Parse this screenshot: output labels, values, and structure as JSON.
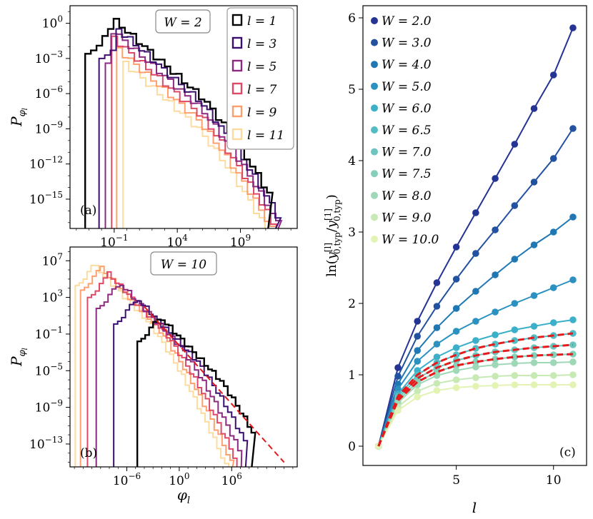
{
  "chart_data": [
    {
      "panel": "a",
      "type": "histogram",
      "panel_label": "(a)",
      "annotation": "W = 2",
      "xlabel": "",
      "ylabel": "P_{φ_l}",
      "xscale": "log",
      "yscale": "log",
      "xlim_log10": [
        -4.5,
        13.5
      ],
      "ylim_log10": [
        -17.5,
        1.5
      ],
      "xticks": [
        {
          "exp": -1,
          "label": "10^{-1}"
        },
        {
          "exp": 4,
          "label": "10^{4}"
        },
        {
          "exp": 9,
          "label": "10^{9}"
        }
      ],
      "yticks": [
        {
          "exp": 0,
          "label": "10^{0}"
        },
        {
          "exp": -3,
          "label": "10^{-3}"
        },
        {
          "exp": -6,
          "label": "10^{-6}"
        },
        {
          "exp": -9,
          "label": "10^{-9}"
        },
        {
          "exp": -12,
          "label": "10^{-12}"
        },
        {
          "exp": -15,
          "label": "10^{-15}"
        }
      ],
      "legend_position": "top-right",
      "series": [
        {
          "name": "l = 1",
          "color": "#000000",
          "xmin_log10": -3.3,
          "xmax_log10": 11.2,
          "peak_x": -1.1,
          "peak_y": 0.2,
          "slope": -1.0
        },
        {
          "name": "l = 3",
          "color": "#3b0f70",
          "xmin_log10": -2.2,
          "xmax_log10": 11.8,
          "peak_x": -1.2,
          "peak_y": -0.2,
          "slope": -1.0
        },
        {
          "name": "l = 5",
          "color": "#8c2981",
          "xmin_log10": -1.7,
          "xmax_log10": 12.0,
          "peak_x": -1.3,
          "peak_y": -0.6,
          "slope": -1.0
        },
        {
          "name": "l = 7",
          "color": "#de4968",
          "xmin_log10": -1.2,
          "xmax_log10": 12.3,
          "peak_x": -1.4,
          "peak_y": -1.1,
          "slope": -1.0
        },
        {
          "name": "l = 9",
          "color": "#fe9f6d",
          "xmin_log10": -0.8,
          "xmax_log10": 12.5,
          "peak_x": -1.5,
          "peak_y": -1.6,
          "slope": -1.0
        },
        {
          "name": "l = 11",
          "color": "#fcdba0",
          "xmin_log10": -0.3,
          "xmax_log10": 12.8,
          "peak_x": -1.6,
          "peak_y": -2.2,
          "slope": -1.0
        }
      ]
    },
    {
      "panel": "b",
      "type": "histogram",
      "panel_label": "(b)",
      "annotation": "W = 10",
      "xlabel": "φ_l",
      "ylabel": "P_{φ_l}",
      "xscale": "log",
      "yscale": "log",
      "xlim_log10": [
        -12.5,
        13.5
      ],
      "ylim_log10": [
        -15.5,
        8.5
      ],
      "xticks": [
        {
          "exp": -6,
          "label": "10^{-6}"
        },
        {
          "exp": 0,
          "label": "10^{0}"
        },
        {
          "exp": 6,
          "label": "10^{6}"
        }
      ],
      "yticks": [
        {
          "exp": 7,
          "label": "10^{7}"
        },
        {
          "exp": 3,
          "label": "10^{3}"
        },
        {
          "exp": -1,
          "label": "10^{-1}"
        },
        {
          "exp": -5,
          "label": "10^{-5}"
        },
        {
          "exp": -9,
          "label": "10^{-9}"
        },
        {
          "exp": -13,
          "label": "10^{-13}"
        }
      ],
      "fit_line": {
        "color": "#e41a1c",
        "x0_log10": -4.0,
        "y0_log10": 2.0,
        "x1_log10": 12.0,
        "y1_log10": -15.0
      },
      "series": [
        {
          "name": "l = 1",
          "color": "#000000",
          "xmin_log10": -4.8,
          "xmax_log10": 8.3,
          "peak_x": -2.5,
          "peak_y": 1.0,
          "slope": -1.05
        },
        {
          "name": "l = 3",
          "color": "#3b0f70",
          "xmin_log10": -7.5,
          "xmax_log10": 7.6,
          "peak_x": -5.0,
          "peak_y": 2.9,
          "slope": -1.05
        },
        {
          "name": "l = 5",
          "color": "#8c2981",
          "xmin_log10": -9.5,
          "xmax_log10": 7.1,
          "peak_x": -7.0,
          "peak_y": 4.6,
          "slope": -1.05
        },
        {
          "name": "l = 7",
          "color": "#de4968",
          "xmin_log10": -10.5,
          "xmax_log10": 6.6,
          "peak_x": -8.5,
          "peak_y": 5.8,
          "slope": -1.05
        },
        {
          "name": "l = 9",
          "color": "#fe9f6d",
          "xmin_log10": -11.3,
          "xmax_log10": 6.1,
          "peak_x": -9.5,
          "peak_y": 6.6,
          "slope": -1.05
        },
        {
          "name": "l = 11",
          "color": "#fcdba0",
          "xmin_log10": -11.9,
          "xmax_log10": 5.7,
          "peak_x": -10.5,
          "peak_y": 7.1,
          "slope": -1.05
        }
      ]
    },
    {
      "panel": "c",
      "type": "line",
      "panel_label": "(c)",
      "xlabel": "l",
      "ylabel": "ln(y_{0,typ}^{[l]} / y_{0,typ}^{[1]})",
      "xlim": [
        0.2,
        11.7
      ],
      "ylim": [
        -0.27,
        6.17
      ],
      "xticks": [
        5,
        10
      ],
      "yticks": [
        0,
        1,
        2,
        3,
        4,
        5,
        6
      ],
      "legend_position": "top-left",
      "x": [
        1,
        2,
        3,
        4,
        5,
        6,
        7,
        8,
        9,
        10,
        11
      ],
      "series": [
        {
          "name": "W = 2.0",
          "color": "#253494",
          "values": [
            0,
            1.1,
            1.75,
            2.29,
            2.79,
            3.27,
            3.75,
            4.23,
            4.73,
            5.2,
            5.86
          ]
        },
        {
          "name": "W = 3.0",
          "color": "#2251a0",
          "values": [
            0,
            0.98,
            1.54,
            1.96,
            2.34,
            2.7,
            3.03,
            3.37,
            3.7,
            4.03,
            4.45
          ]
        },
        {
          "name": "W = 4.0",
          "color": "#1f78b4",
          "values": [
            0,
            0.87,
            1.34,
            1.66,
            1.93,
            2.17,
            2.4,
            2.62,
            2.82,
            3.0,
            3.21
          ]
        },
        {
          "name": "W = 5.0",
          "color": "#2a91c0",
          "values": [
            0,
            0.8,
            1.19,
            1.43,
            1.61,
            1.75,
            1.88,
            2.0,
            2.11,
            2.22,
            2.33
          ]
        },
        {
          "name": "W = 6.0",
          "color": "#3bb0c8",
          "values": [
            0,
            0.73,
            1.06,
            1.25,
            1.38,
            1.48,
            1.56,
            1.63,
            1.68,
            1.73,
            1.77
          ]
        },
        {
          "name": "W = 6.5",
          "color": "#52bcc4",
          "values": [
            0,
            0.7,
            1.0,
            1.17,
            1.28,
            1.37,
            1.43,
            1.48,
            1.52,
            1.55,
            1.58
          ]
        },
        {
          "name": "W = 7.0",
          "color": "#6cc6bf",
          "values": [
            0,
            0.67,
            0.95,
            1.1,
            1.2,
            1.27,
            1.32,
            1.35,
            1.38,
            1.4,
            1.42
          ]
        },
        {
          "name": "W = 7.5",
          "color": "#85cfbb",
          "values": [
            0,
            0.64,
            0.9,
            1.04,
            1.13,
            1.18,
            1.22,
            1.25,
            1.27,
            1.28,
            1.29
          ]
        },
        {
          "name": "W = 8.0",
          "color": "#9ed8b6",
          "values": [
            0,
            0.61,
            0.86,
            0.99,
            1.06,
            1.11,
            1.14,
            1.16,
            1.17,
            1.17,
            1.18
          ]
        },
        {
          "name": "W = 9.0",
          "color": "#c7e9b4",
          "values": [
            0,
            0.55,
            0.77,
            0.88,
            0.93,
            0.96,
            0.98,
            0.99,
            0.99,
            0.99,
            1.0
          ]
        },
        {
          "name": "W = 10.0",
          "color": "#e3f3b4",
          "values": [
            0,
            0.5,
            0.69,
            0.78,
            0.82,
            0.84,
            0.85,
            0.86,
            0.86,
            0.86,
            0.86
          ]
        }
      ],
      "fit_series": [
        {
          "color": "#e41a1c",
          "values": [
            0,
            0.7,
            1.0,
            1.17,
            1.28,
            1.37,
            1.43,
            1.48,
            1.52,
            1.55,
            1.58
          ]
        },
        {
          "color": "#e41a1c",
          "values": [
            0,
            0.67,
            0.95,
            1.1,
            1.2,
            1.27,
            1.32,
            1.35,
            1.38,
            1.4,
            1.42
          ]
        },
        {
          "color": "#e41a1c",
          "values": [
            0,
            0.64,
            0.9,
            1.04,
            1.13,
            1.18,
            1.22,
            1.25,
            1.27,
            1.28,
            1.29
          ]
        }
      ]
    }
  ]
}
